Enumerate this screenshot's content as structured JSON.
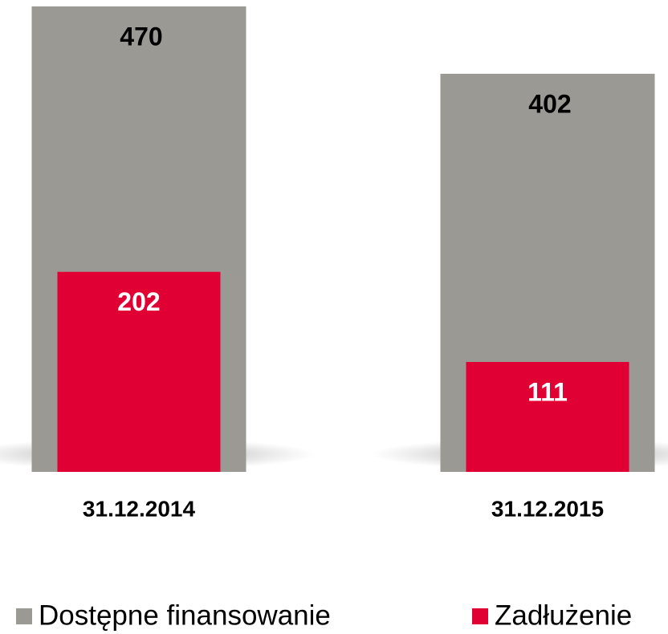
{
  "chart_data": {
    "type": "bar",
    "categories": [
      "31.12.2014",
      "31.12.2015"
    ],
    "series": [
      {
        "name": "Dostępne finansowanie",
        "color": "#9b9993",
        "values": [
          470,
          402
        ]
      },
      {
        "name": "Zadłużenie",
        "color": "#e10034",
        "values": [
          202,
          111
        ]
      }
    ]
  }
}
